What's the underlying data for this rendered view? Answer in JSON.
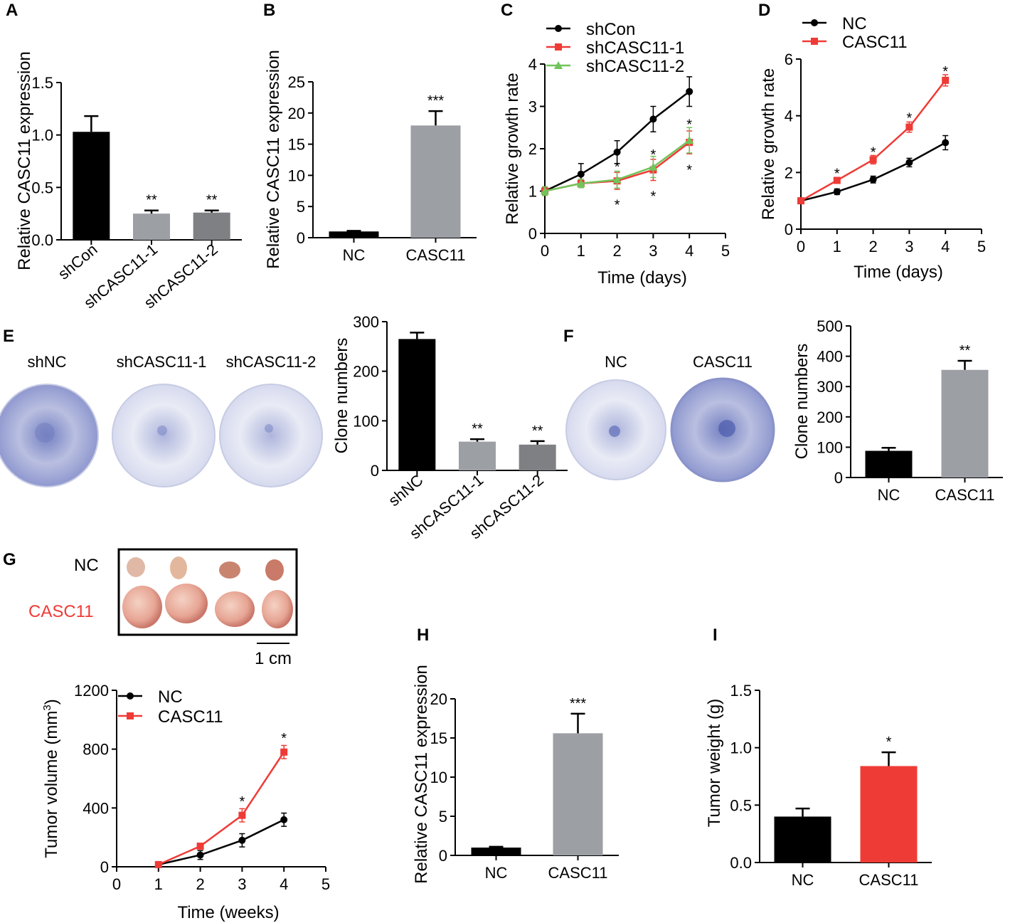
{
  "colors": {
    "black": "#000000",
    "light_gray": "#9c9fa4",
    "dark_gray": "#7f8084",
    "red": "#ef3b36",
    "green": "#71c45b",
    "dish_fill": "#e7e9f4",
    "dish_stain": "#7480c2",
    "tumor_nc": "#d98f7f",
    "tumor_casc11": "#eab2a0"
  },
  "panels": {
    "A": {
      "letter": "A"
    },
    "B": {
      "letter": "B"
    },
    "C": {
      "letter": "C"
    },
    "D": {
      "letter": "D"
    },
    "E": {
      "letter": "E"
    },
    "F": {
      "letter": "F"
    },
    "G": {
      "letter": "G"
    },
    "H": {
      "letter": "H"
    },
    "I": {
      "letter": "I"
    }
  },
  "colony_images": {
    "E": {
      "labels": [
        "shNC",
        "shCASC11-1",
        "shCASC11-2"
      ],
      "stain_levels": [
        0.8,
        0.3,
        0.3
      ]
    },
    "F": {
      "labels": [
        "NC",
        "CASC11"
      ],
      "stain_levels": [
        0.25,
        0.85
      ]
    }
  },
  "tumor_photo": {
    "row_labels": [
      "NC",
      "CASC11"
    ],
    "scale_bar": "1 cm"
  },
  "chart_data": [
    {
      "id": "A",
      "type": "bar",
      "categories": [
        "shCon",
        "shCASC11-1",
        "shCASC11-2"
      ],
      "values": [
        1.03,
        0.25,
        0.26
      ],
      "errors": [
        0.15,
        0.03,
        0.02
      ],
      "colors": [
        "#000000",
        "#9c9fa4",
        "#7f8084"
      ],
      "annotations": [
        "",
        "**",
        "**"
      ],
      "ylabel": "Relative CASC11 expression",
      "ylim": [
        0,
        1.5
      ],
      "yticks": [
        "0.0",
        "0.5",
        "1.0",
        "1.5"
      ],
      "rotate_labels": true
    },
    {
      "id": "B",
      "type": "bar",
      "categories": [
        "NC",
        "CASC11"
      ],
      "values": [
        1.0,
        18.0
      ],
      "errors": [
        0.1,
        2.3
      ],
      "colors": [
        "#000000",
        "#9c9fa4"
      ],
      "annotations": [
        "",
        "***"
      ],
      "ylabel": "Relative CASC11 expression",
      "ylim": [
        0,
        25
      ],
      "yticks": [
        "0",
        "5",
        "10",
        "15",
        "20",
        "25"
      ]
    },
    {
      "id": "C",
      "type": "line",
      "x": [
        0,
        1,
        2,
        3,
        4
      ],
      "series": [
        {
          "name": "shCon",
          "color": "#000000",
          "marker": "circle",
          "values": [
            1.0,
            1.4,
            1.92,
            2.7,
            3.35
          ],
          "errors": [
            0.1,
            0.25,
            0.27,
            0.3,
            0.35
          ]
        },
        {
          "name": "shCASC11-1",
          "color": "#ef3b36",
          "marker": "square",
          "values": [
            1.0,
            1.18,
            1.24,
            1.5,
            2.15
          ],
          "errors": [
            0.1,
            0.1,
            0.2,
            0.25,
            0.27
          ]
        },
        {
          "name": "shCASC11-2",
          "color": "#71c45b",
          "marker": "triangle",
          "values": [
            1.0,
            1.18,
            1.27,
            1.57,
            2.2
          ],
          "errors": [
            0.1,
            0.1,
            0.2,
            0.25,
            0.3
          ]
        }
      ],
      "annotations": [
        {
          "x": 2,
          "y": 0.7,
          "text": "*"
        },
        {
          "x": 2,
          "y": 1.6,
          "text": "*"
        },
        {
          "x": 3,
          "y": 0.9,
          "text": "*"
        },
        {
          "x": 3,
          "y": 1.88,
          "text": "*"
        },
        {
          "x": 4,
          "y": 1.52,
          "text": "*"
        },
        {
          "x": 4,
          "y": 2.6,
          "text": "*"
        }
      ],
      "xlabel": "Time (days)",
      "ylabel": "Relative growth rate",
      "xlim": [
        0,
        5
      ],
      "ylim": [
        0,
        4
      ],
      "xticks": [
        "0",
        "1",
        "2",
        "3",
        "4",
        "5"
      ],
      "yticks": [
        "0",
        "1",
        "2",
        "3",
        "4"
      ]
    },
    {
      "id": "D",
      "type": "line",
      "x": [
        0,
        1,
        2,
        3,
        4
      ],
      "series": [
        {
          "name": "NC",
          "color": "#000000",
          "marker": "circle",
          "values": [
            1.0,
            1.32,
            1.75,
            2.35,
            3.05
          ],
          "errors": [
            0.05,
            0.1,
            0.12,
            0.15,
            0.25
          ]
        },
        {
          "name": "CASC11",
          "color": "#ef3b36",
          "marker": "square",
          "values": [
            1.0,
            1.72,
            2.45,
            3.6,
            5.25
          ],
          "errors": [
            0.05,
            0.1,
            0.15,
            0.18,
            0.2
          ]
        }
      ],
      "annotations": [
        {
          "x": 1,
          "y": 2.0,
          "text": "*"
        },
        {
          "x": 2,
          "y": 2.75,
          "text": "*"
        },
        {
          "x": 3,
          "y": 3.95,
          "text": "*"
        },
        {
          "x": 4,
          "y": 5.6,
          "text": "*"
        }
      ],
      "xlabel": "Time (days)",
      "ylabel": "Relative growth rate",
      "xlim": [
        0,
        5
      ],
      "ylim": [
        0,
        6
      ],
      "xticks": [
        "0",
        "1",
        "2",
        "3",
        "4",
        "5"
      ],
      "yticks": [
        "0",
        "2",
        "4",
        "6"
      ]
    },
    {
      "id": "E",
      "type": "bar",
      "categories": [
        "shNC",
        "shCASC11-1",
        "shCASC11-2"
      ],
      "values": [
        265,
        58,
        52
      ],
      "errors": [
        13,
        5,
        7
      ],
      "colors": [
        "#000000",
        "#9c9fa4",
        "#7f8084"
      ],
      "annotations": [
        "",
        "**",
        "**"
      ],
      "ylabel": "Clone numbers",
      "ylim": [
        0,
        300
      ],
      "yticks": [
        "0",
        "100",
        "200",
        "300"
      ],
      "rotate_labels": true
    },
    {
      "id": "F",
      "type": "bar",
      "categories": [
        "NC",
        "CASC11"
      ],
      "values": [
        88,
        355
      ],
      "errors": [
        10,
        30
      ],
      "colors": [
        "#000000",
        "#9c9fa4"
      ],
      "annotations": [
        "",
        "**"
      ],
      "ylabel": "Clone numbers",
      "ylim": [
        0,
        500
      ],
      "yticks": [
        "0",
        "100",
        "200",
        "300",
        "400",
        "500"
      ]
    },
    {
      "id": "G",
      "type": "line",
      "x": [
        1,
        2,
        3,
        4
      ],
      "series": [
        {
          "name": "NC",
          "color": "#000000",
          "marker": "circle",
          "values": [
            15,
            80,
            180,
            320
          ],
          "errors": [
            10,
            30,
            45,
            45
          ]
        },
        {
          "name": "CASC11",
          "color": "#ef3b36",
          "marker": "square",
          "values": [
            15,
            140,
            350,
            780
          ],
          "errors": [
            5,
            10,
            45,
            45
          ]
        }
      ],
      "annotations": [
        {
          "x": 3,
          "y": 450,
          "text": "*"
        },
        {
          "x": 4,
          "y": 880,
          "text": "*"
        }
      ],
      "xlabel": "Time (weeks)",
      "ylabel": "Tumor volume (mm",
      "ylabel_sup": "3",
      "ylabel_end": ")",
      "xlim": [
        0,
        5
      ],
      "ylim": [
        0,
        1200
      ],
      "xticks": [
        "0",
        "1",
        "2",
        "3",
        "4",
        "5"
      ],
      "yticks": [
        "0",
        "400",
        "800",
        "1200"
      ]
    },
    {
      "id": "H",
      "type": "bar",
      "categories": [
        "NC",
        "CASC11"
      ],
      "values": [
        1.0,
        15.6
      ],
      "errors": [
        0.1,
        2.5
      ],
      "colors": [
        "#000000",
        "#9c9fa4"
      ],
      "annotations": [
        "",
        "***"
      ],
      "ylabel": "Relative CASC11 expression",
      "ylim": [
        0,
        20
      ],
      "yticks": [
        "0",
        "5",
        "10",
        "15",
        "20"
      ]
    },
    {
      "id": "I",
      "type": "bar",
      "categories": [
        "NC",
        "CASC11"
      ],
      "values": [
        0.4,
        0.84
      ],
      "errors": [
        0.07,
        0.12
      ],
      "colors": [
        "#000000",
        "#ef3b36"
      ],
      "annotations": [
        "",
        "*"
      ],
      "ylabel": "Tumor weight (g)",
      "ylim": [
        0,
        1.5
      ],
      "yticks": [
        "0.0",
        "0.5",
        "1.0",
        "1.5"
      ]
    }
  ]
}
